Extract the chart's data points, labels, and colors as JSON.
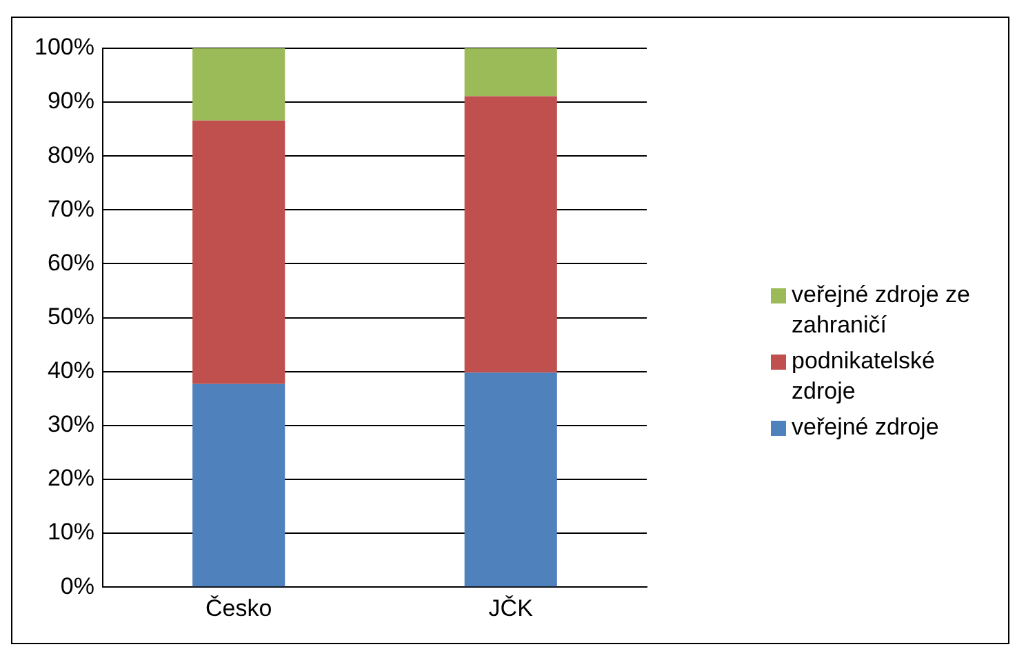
{
  "chart_data": {
    "type": "bar",
    "stacked": true,
    "categories": [
      "Česko",
      "JČK"
    ],
    "series": [
      {
        "name": "veřejné zdroje",
        "color": "#4f81bd",
        "values": [
          37.7,
          39.8
        ]
      },
      {
        "name": "podnikatelské zdroje",
        "color": "#c0504d",
        "values": [
          48.9,
          51.3
        ]
      },
      {
        "name": "veřejné zdroje ze zahraničí",
        "color": "#9bbb59",
        "values": [
          13.4,
          8.9
        ]
      }
    ],
    "ylim": [
      0,
      100
    ],
    "yticks": [
      {
        "value": 0,
        "label": "0%"
      },
      {
        "value": 10,
        "label": "10%"
      },
      {
        "value": 20,
        "label": "20%"
      },
      {
        "value": 30,
        "label": "30%"
      },
      {
        "value": 40,
        "label": "40%"
      },
      {
        "value": 50,
        "label": "50%"
      },
      {
        "value": 60,
        "label": "60%"
      },
      {
        "value": 70,
        "label": "70%"
      },
      {
        "value": 80,
        "label": "80%"
      },
      {
        "value": 90,
        "label": "90%"
      },
      {
        "value": 100,
        "label": "100%"
      }
    ],
    "grid": "y",
    "legend": "right"
  }
}
